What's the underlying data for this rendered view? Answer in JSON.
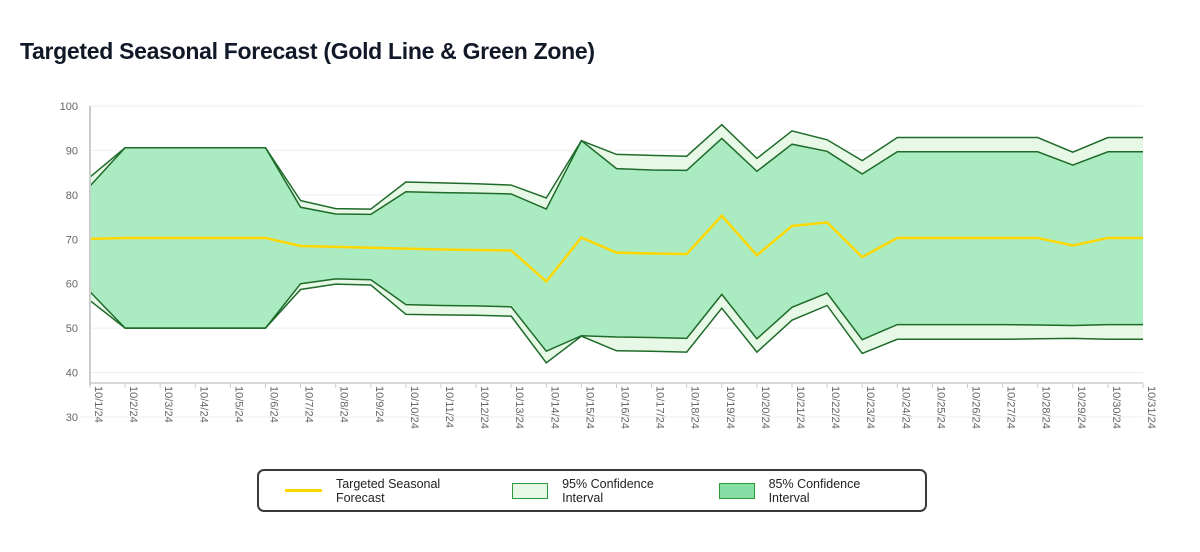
{
  "page": {
    "title": "Targeted Seasonal Forecast (Gold Line & Green Zone)"
  },
  "colors": {
    "forecast_line": "#FFD700",
    "ci95_fill": "#E8F8E6",
    "ci85_fill": "#ABEBC1",
    "band_stroke": "#1E6B2A",
    "legend_ci85_swatch": "#86E0A6",
    "grid": "#EEEEEE",
    "axis": "#CCCCCC"
  },
  "legend": {
    "items": [
      {
        "label": "Targeted Seasonal Forecast",
        "kind": "line",
        "color": "#FFD700"
      },
      {
        "label": "95% Confidence Interval",
        "kind": "box",
        "color": "#E8F8E6"
      },
      {
        "label": "85% Confidence Interval",
        "kind": "box",
        "color": "#86E0A6"
      }
    ]
  },
  "chart_data": {
    "type": "area",
    "title": "Targeted Seasonal Forecast (Gold Line & Green Zone)",
    "xlabel": "",
    "ylabel": "",
    "ylim": [
      30,
      100
    ],
    "yticks": [
      30,
      40,
      50,
      60,
      70,
      80,
      90,
      100
    ],
    "grid": true,
    "legend_position": "bottom",
    "categories": [
      "10/1/24",
      "10/2/24",
      "10/3/24",
      "10/4/24",
      "10/5/24",
      "10/6/24",
      "10/7/24",
      "10/8/24",
      "10/9/24",
      "10/10/24",
      "10/11/24",
      "10/12/24",
      "10/13/24",
      "10/14/24",
      "10/15/24",
      "10/16/24",
      "10/17/24",
      "10/18/24",
      "10/19/24",
      "10/20/24",
      "10/21/24",
      "10/22/24",
      "10/23/24",
      "10/24/24",
      "10/25/24",
      "10/26/24",
      "10/27/24",
      "10/28/24",
      "10/29/24",
      "10/30/24",
      "10/31/24"
    ],
    "series": [
      {
        "name": "Targeted Seasonal Forecast",
        "type": "line",
        "values": [
          70.1,
          70.3,
          70.3,
          70.3,
          70.3,
          70.3,
          68.5,
          68.3,
          68.1,
          67.9,
          67.7,
          67.6,
          67.5,
          60.5,
          70.4,
          67.0,
          66.8,
          66.7,
          75.3,
          66.4,
          73.0,
          73.8,
          66.0,
          70.3,
          70.3,
          70.3,
          70.3,
          70.3,
          68.6,
          70.3,
          70.3
        ]
      },
      {
        "name": "95% Confidence Interval",
        "type": "band",
        "upper": [
          84.0,
          90.6,
          90.6,
          90.6,
          90.6,
          90.6,
          78.7,
          76.9,
          76.8,
          82.9,
          82.7,
          82.5,
          82.2,
          79.3,
          92.2,
          89.1,
          88.9,
          88.7,
          95.8,
          88.2,
          94.4,
          92.4,
          87.7,
          92.9,
          92.9,
          92.9,
          92.9,
          92.9,
          89.6,
          92.9,
          92.9
        ],
        "lower": [
          56.2,
          50.0,
          50.0,
          50.0,
          50.0,
          50.0,
          58.7,
          59.9,
          59.7,
          53.1,
          53.0,
          52.9,
          52.7,
          42.2,
          48.2,
          44.9,
          44.8,
          44.6,
          54.5,
          44.6,
          51.8,
          55.1,
          44.3,
          47.5,
          47.5,
          47.5,
          47.5,
          47.6,
          47.7,
          47.5,
          47.5
        ]
      },
      {
        "name": "85% Confidence Interval",
        "type": "band",
        "upper": [
          82.0,
          90.6,
          90.6,
          90.6,
          90.6,
          90.6,
          77.2,
          75.7,
          75.6,
          80.7,
          80.5,
          80.4,
          80.2,
          76.8,
          92.2,
          85.9,
          85.6,
          85.5,
          92.7,
          85.3,
          91.4,
          89.8,
          84.7,
          89.7,
          89.7,
          89.7,
          89.7,
          89.7,
          86.7,
          89.7,
          89.7
        ],
        "lower": [
          58.2,
          50.0,
          50.0,
          50.0,
          50.0,
          50.0,
          60.0,
          61.1,
          60.9,
          55.3,
          55.1,
          55.0,
          54.8,
          44.8,
          48.3,
          48.0,
          47.9,
          47.7,
          57.6,
          47.6,
          54.7,
          57.9,
          47.4,
          50.8,
          50.8,
          50.8,
          50.8,
          50.7,
          50.6,
          50.8,
          50.8
        ]
      }
    ]
  }
}
